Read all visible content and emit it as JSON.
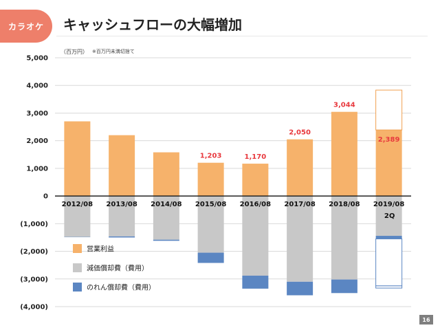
{
  "header": {
    "badge": "カラオケ",
    "title": "キャッシュフローの大幅増加"
  },
  "unit_label": "（百万円）",
  "note": "※百万円未満切捨て",
  "page_number": "16",
  "colors": {
    "operating_profit": "#f6b26b",
    "depreciation": "#c8c8c8",
    "goodwill": "#5b86c2",
    "label_red": "#e8383d",
    "outline_orange": "#f0a050",
    "outline_blue": "#5b86c2",
    "axis": "#222222",
    "grid": "#d9d9d9"
  },
  "chart_data": {
    "type": "bar",
    "title": "キャッシュフローの大幅増加",
    "ylim": [
      -4000,
      5000
    ],
    "yticks": [
      5000,
      4000,
      3000,
      2000,
      1000,
      0,
      -1000,
      -2000,
      -3000,
      -4000
    ],
    "ytick_labels": [
      "5,000",
      "4,000",
      "3,000",
      "2,000",
      "1,000",
      "0",
      "(1,000)",
      "(2,000)",
      "(3,000)",
      "(4,000)"
    ],
    "categories": [
      "2012/08",
      "2013/08",
      "2014/08",
      "2015/08",
      "2016/08",
      "2017/08",
      "2018/08",
      "2019/08"
    ],
    "category_sublabels": [
      "",
      "",
      "",
      "",
      "",
      "",
      "",
      "2Q"
    ],
    "series": [
      {
        "name": "営業利益",
        "values": [
          2700,
          2200,
          1580,
          1203,
          1170,
          2050,
          3044,
          2389
        ]
      },
      {
        "name": "減価償却費（費用）",
        "values": [
          -1480,
          -1460,
          -1580,
          -2050,
          -2880,
          -3100,
          -3020,
          -1440
        ]
      },
      {
        "name": "のれん償却費（費用）",
        "values": [
          -10,
          -40,
          -40,
          -370,
          -470,
          -490,
          -490,
          -110
        ]
      }
    ],
    "data_labels": [
      "",
      "",
      "",
      "1,203",
      "1,170",
      "2,050",
      "3,044",
      "2,389"
    ],
    "forecast_last": {
      "operating_profit_total": 3830,
      "depreciation_total": -3250,
      "goodwill_total": -3330
    },
    "legend": {
      "position": "lower-left"
    },
    "grid": true
  }
}
